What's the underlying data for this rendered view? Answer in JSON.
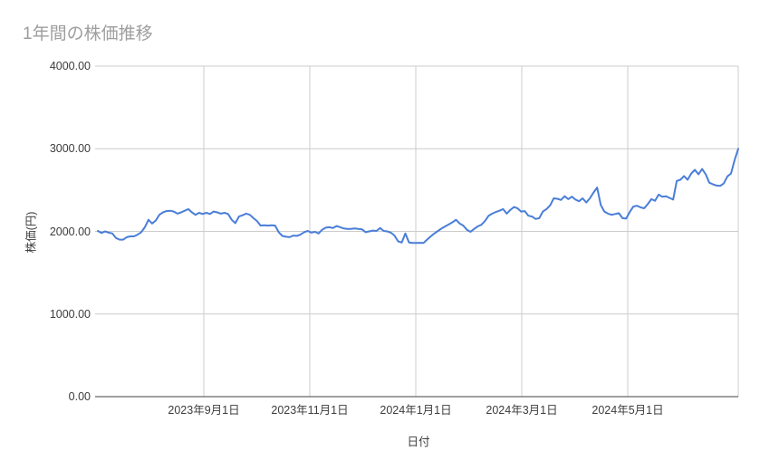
{
  "chart_data": {
    "type": "line",
    "title": "1年間の株価推移",
    "xlabel": "日付",
    "ylabel": "株価(円)",
    "ylim": [
      0,
      4000
    ],
    "grid": true,
    "legend_position": "none",
    "y_ticks": [
      {
        "value": 4000,
        "label": "4000.00"
      },
      {
        "value": 3000,
        "label": "3000.00"
      },
      {
        "value": 2000,
        "label": "2000.00"
      },
      {
        "value": 1000,
        "label": "1000.00"
      },
      {
        "value": 0,
        "label": "0.00"
      }
    ],
    "x_ticks": [
      "2023年9月1日",
      "2023年11月1日",
      "2024年1月1日",
      "2024年3月1日",
      "2024年5月1日"
    ],
    "values": [
      2005,
      1980,
      2000,
      1985,
      1975,
      1920,
      1900,
      1900,
      1930,
      1940,
      1940,
      1960,
      1990,
      2050,
      2140,
      2095,
      2130,
      2200,
      2230,
      2245,
      2250,
      2240,
      2215,
      2230,
      2250,
      2270,
      2230,
      2200,
      2225,
      2210,
      2225,
      2210,
      2240,
      2230,
      2215,
      2225,
      2210,
      2140,
      2100,
      2180,
      2195,
      2215,
      2200,
      2160,
      2125,
      2070,
      2075,
      2070,
      2075,
      2070,
      1990,
      1945,
      1935,
      1930,
      1950,
      1945,
      1960,
      1990,
      2005,
      1985,
      1995,
      1975,
      2020,
      2045,
      2050,
      2040,
      2065,
      2050,
      2035,
      2030,
      2030,
      2035,
      2030,
      2025,
      1990,
      2000,
      2010,
      2005,
      2040,
      2005,
      2000,
      1985,
      1950,
      1880,
      1865,
      1975,
      1865,
      1860,
      1860,
      1862,
      1860,
      1900,
      1940,
      1975,
      2005,
      2035,
      2060,
      2085,
      2110,
      2140,
      2095,
      2070,
      2020,
      1995,
      2030,
      2060,
      2080,
      2125,
      2190,
      2215,
      2235,
      2250,
      2270,
      2215,
      2260,
      2295,
      2280,
      2240,
      2245,
      2190,
      2180,
      2150,
      2160,
      2240,
      2270,
      2315,
      2400,
      2395,
      2380,
      2425,
      2390,
      2420,
      2385,
      2365,
      2400,
      2350,
      2400,
      2470,
      2530,
      2320,
      2240,
      2215,
      2200,
      2210,
      2220,
      2160,
      2155,
      2235,
      2300,
      2310,
      2290,
      2280,
      2330,
      2390,
      2370,
      2445,
      2420,
      2425,
      2405,
      2385,
      2610,
      2625,
      2670,
      2625,
      2700,
      2745,
      2690,
      2755,
      2690,
      2590,
      2570,
      2555,
      2550,
      2580,
      2665,
      2700,
      2865,
      3000
    ]
  },
  "colors": {
    "series": "#4a7ed8",
    "grid": "#cccccc",
    "axis": "#424242",
    "title": "#9e9e9e",
    "label": "#3c3c3c",
    "background": "#ffffff"
  }
}
